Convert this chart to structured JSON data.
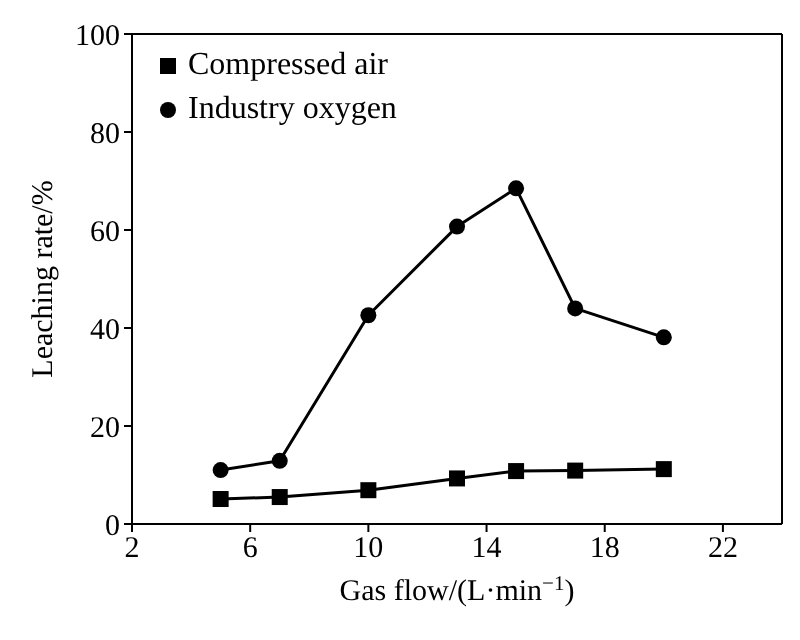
{
  "chart_data": {
    "type": "line",
    "xlabel": "Gas flow/(L·min$^{−1}$)",
    "ylabel": "Leaching rate/%",
    "x": [
      5,
      7,
      10,
      13,
      15,
      17,
      20
    ],
    "series": [
      {
        "name": "Compressed air",
        "color": "#000000",
        "marker": "square",
        "values": [
          5.1,
          5.5,
          6.9,
          9.3,
          10.8,
          10.9,
          11.2
        ]
      },
      {
        "name": "Industry oxygen",
        "color": "#000000",
        "marker": "circle",
        "values": [
          11.0,
          12.9,
          42.6,
          60.7,
          68.5,
          44.0,
          38.1
        ]
      }
    ],
    "xlim": [
      2,
      24
    ],
    "xticks": [
      2,
      6,
      10,
      14,
      18,
      22
    ],
    "ylim": [
      0,
      100
    ],
    "yticks": [
      0,
      20,
      40,
      60,
      80,
      100
    ],
    "grid": false,
    "legend": "top left",
    "line_style": "solid"
  }
}
